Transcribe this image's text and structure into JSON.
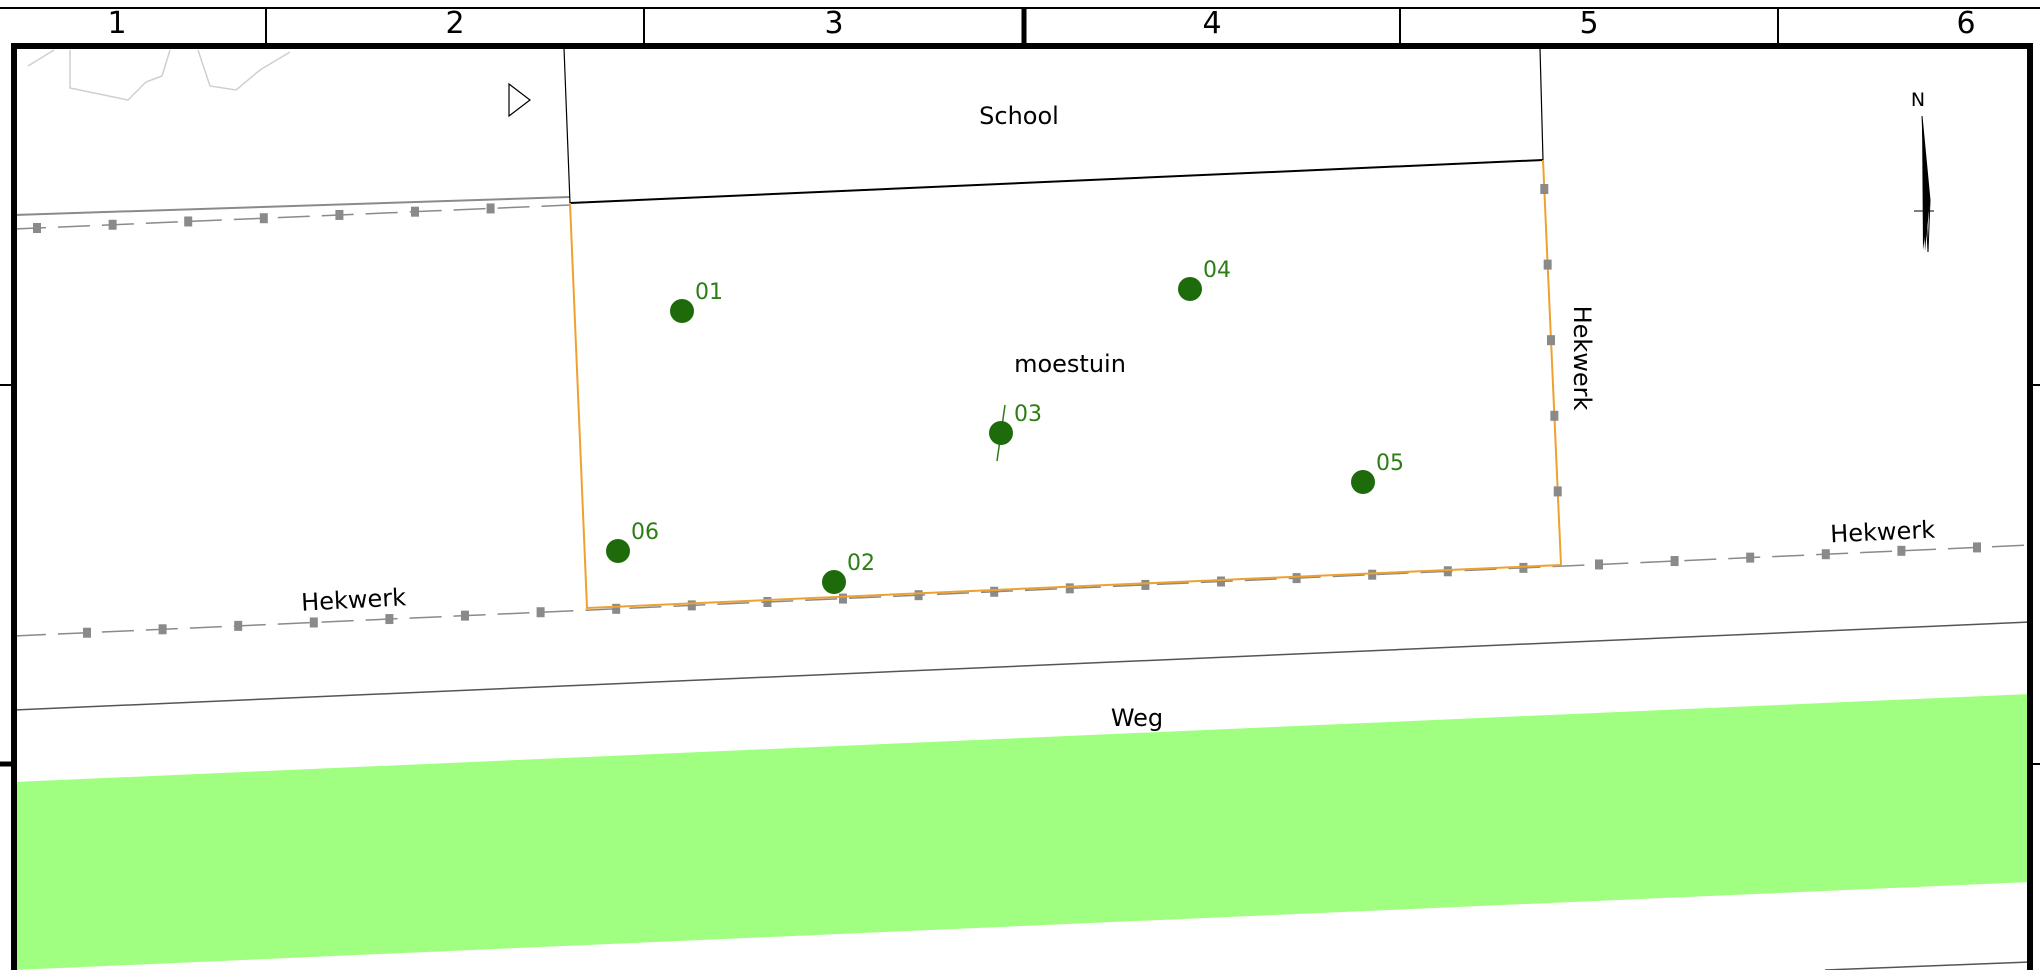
{
  "grid_columns": [
    "1",
    "2",
    "3",
    "4",
    "5",
    "6"
  ],
  "labels": {
    "school": "School",
    "garden": "moestuin",
    "fence_right": "Hekwerk",
    "fence_bottom_left": "Hekwerk",
    "fence_bottom_right": "Hekwerk",
    "road": "Weg"
  },
  "north_arrow": {
    "label": "N"
  },
  "trees": [
    {
      "id": "01"
    },
    {
      "id": "02"
    },
    {
      "id": "03"
    },
    {
      "id": "04"
    },
    {
      "id": "05"
    },
    {
      "id": "06"
    }
  ],
  "colors": {
    "tree": "#1e6b0b",
    "tree_label": "#2c7d14",
    "garden_boundary": "#f0a030",
    "grass": "#a0ff80",
    "fence_post": "#8a8a8a",
    "frame": "#000000"
  }
}
